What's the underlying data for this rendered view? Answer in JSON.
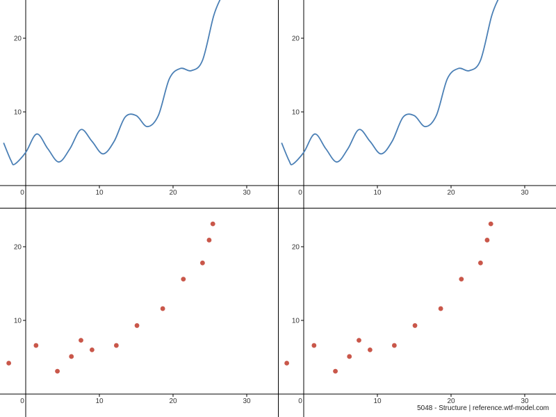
{
  "chart_data": [
    {
      "type": "line",
      "xlim": [
        -3.5,
        35
      ],
      "ylim": [
        -2.5,
        25
      ],
      "x_ticks": [
        0,
        10,
        20,
        30
      ],
      "y_ticks": [
        10,
        20
      ],
      "grid": false,
      "series": [
        {
          "x": [
            -3.0,
            -2.0,
            -1.5,
            0.0,
            1.5,
            3.0,
            4.5,
            6.0,
            7.5,
            9.0,
            10.5,
            12.0,
            13.5,
            15.0,
            16.5,
            18.0,
            19.5,
            21.0,
            22.5,
            24.0,
            25.5,
            26.5
          ],
          "y": [
            5.8,
            3.4,
            2.9,
            4.5,
            7.0,
            5.0,
            3.2,
            5.0,
            7.6,
            6.0,
            4.3,
            6.0,
            9.3,
            9.5,
            8.0,
            9.5,
            14.5,
            15.9,
            15.6,
            17.0,
            23.0,
            25.5
          ],
          "color": "#4a7fb5"
        }
      ]
    },
    {
      "type": "scatter",
      "xlim": [
        -3.5,
        35
      ],
      "ylim": [
        -2.5,
        25
      ],
      "x_ticks": [
        0,
        10,
        20,
        30
      ],
      "y_ticks": [
        10,
        20
      ],
      "grid": false,
      "series": [
        {
          "x": [
            -2.3,
            1.4,
            4.3,
            6.2,
            7.5,
            9.0,
            12.3,
            15.1,
            18.6,
            21.4,
            24.0,
            24.9,
            25.4
          ],
          "y": [
            4.2,
            6.6,
            3.1,
            5.1,
            7.3,
            6.0,
            6.6,
            9.3,
            11.6,
            15.6,
            17.8,
            20.9,
            23.1
          ],
          "color": "#c9574a"
        }
      ]
    },
    {
      "type": "line",
      "xlim": [
        -3.5,
        35
      ],
      "ylim": [
        -2.5,
        25
      ],
      "x_ticks": [
        0,
        10,
        20,
        30
      ],
      "y_ticks": [
        10,
        20
      ],
      "grid": false,
      "series": [
        {
          "x": [
            -3.0,
            -2.0,
            -1.5,
            0.0,
            1.5,
            3.0,
            4.5,
            6.0,
            7.5,
            9.0,
            10.5,
            12.0,
            13.5,
            15.0,
            16.5,
            18.0,
            19.5,
            21.0,
            22.5,
            24.0,
            25.5,
            26.5
          ],
          "y": [
            5.8,
            3.4,
            2.9,
            4.5,
            7.0,
            5.0,
            3.2,
            5.0,
            7.6,
            6.0,
            4.3,
            6.0,
            9.3,
            9.5,
            8.0,
            9.5,
            14.5,
            15.9,
            15.6,
            17.0,
            23.0,
            25.5
          ],
          "color": "#4a7fb5"
        }
      ]
    },
    {
      "type": "scatter",
      "xlim": [
        -3.5,
        35
      ],
      "ylim": [
        -2.5,
        25
      ],
      "x_ticks": [
        0,
        10,
        20,
        30
      ],
      "y_ticks": [
        10,
        20
      ],
      "grid": false,
      "series": [
        {
          "x": [
            -2.3,
            1.4,
            4.3,
            6.2,
            7.5,
            9.0,
            12.3,
            15.1,
            18.6,
            21.4,
            24.0,
            24.9,
            25.4
          ],
          "y": [
            4.2,
            6.6,
            3.1,
            5.1,
            7.3,
            6.0,
            6.6,
            9.3,
            11.6,
            15.6,
            17.8,
            20.9,
            23.1
          ],
          "color": "#c9574a"
        }
      ]
    }
  ],
  "footer": {
    "credit": "5048 - Structure | reference.wtf-model.com"
  }
}
